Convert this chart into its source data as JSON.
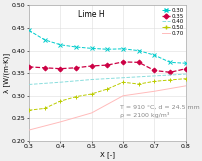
{
  "title": "Lime H",
  "xlabel": "X [-]",
  "ylabel": "λ [W/(m·K)]",
  "annotation": "T = 910 °C, d = 24.5 mm\nρ = 2100 kg/m³",
  "xlim": [
    0.3,
    0.8
  ],
  "ylim": [
    0.2,
    0.5
  ],
  "xticks": [
    0.3,
    0.4,
    0.5,
    0.6,
    0.7,
    0.8
  ],
  "yticks": [
    0.2,
    0.25,
    0.3,
    0.35,
    0.4,
    0.45,
    0.5
  ],
  "series": [
    {
      "label": "0.30",
      "color": "#00cccc",
      "marker": "x",
      "linestyle": "--",
      "linewidth": 0.7,
      "markersize": 3,
      "x": [
        0.3,
        0.35,
        0.4,
        0.45,
        0.5,
        0.55,
        0.6,
        0.65,
        0.7,
        0.75,
        0.8
      ],
      "y": [
        0.445,
        0.424,
        0.413,
        0.408,
        0.405,
        0.403,
        0.404,
        0.4,
        0.39,
        0.374,
        0.372
      ]
    },
    {
      "label": "0.35",
      "color": "#cc0044",
      "marker": "D",
      "linestyle": "--",
      "linewidth": 0.9,
      "markersize": 2.5,
      "x": [
        0.3,
        0.35,
        0.4,
        0.45,
        0.5,
        0.55,
        0.6,
        0.65,
        0.7,
        0.75,
        0.8
      ],
      "y": [
        0.364,
        0.362,
        0.36,
        0.362,
        0.366,
        0.368,
        0.375,
        0.374,
        0.356,
        0.352,
        0.36
      ]
    },
    {
      "label": "0.40",
      "color": "#88dddd",
      "marker": null,
      "linestyle": "--",
      "linewidth": 0.7,
      "markersize": 0,
      "x": [
        0.3,
        0.4,
        0.5,
        0.6,
        0.7,
        0.8
      ],
      "y": [
        0.325,
        0.33,
        0.336,
        0.34,
        0.344,
        0.348
      ]
    },
    {
      "label": "0.50",
      "color": "#bbcc00",
      "marker": "+",
      "linestyle": "--",
      "linewidth": 0.7,
      "markersize": 3.5,
      "x": [
        0.3,
        0.35,
        0.4,
        0.45,
        0.5,
        0.55,
        0.6,
        0.65,
        0.7,
        0.75,
        0.8
      ],
      "y": [
        0.268,
        0.272,
        0.288,
        0.298,
        0.304,
        0.315,
        0.33,
        0.326,
        0.332,
        0.335,
        0.338
      ]
    },
    {
      "label": "0.70",
      "color": "#ffbbbb",
      "marker": null,
      "linestyle": "-",
      "linewidth": 0.7,
      "markersize": 0,
      "x": [
        0.3,
        0.4,
        0.5,
        0.6,
        0.7,
        0.8
      ],
      "y": [
        0.224,
        0.242,
        0.262,
        0.3,
        0.31,
        0.322
      ]
    }
  ],
  "bg_color": "#f0f0f0",
  "plot_bg": "#ffffff",
  "grid_color": "#dddddd",
  "title_fontsize": 5.5,
  "label_fontsize": 5,
  "tick_fontsize": 4.5,
  "legend_fontsize": 4,
  "annot_fontsize": 4.5
}
